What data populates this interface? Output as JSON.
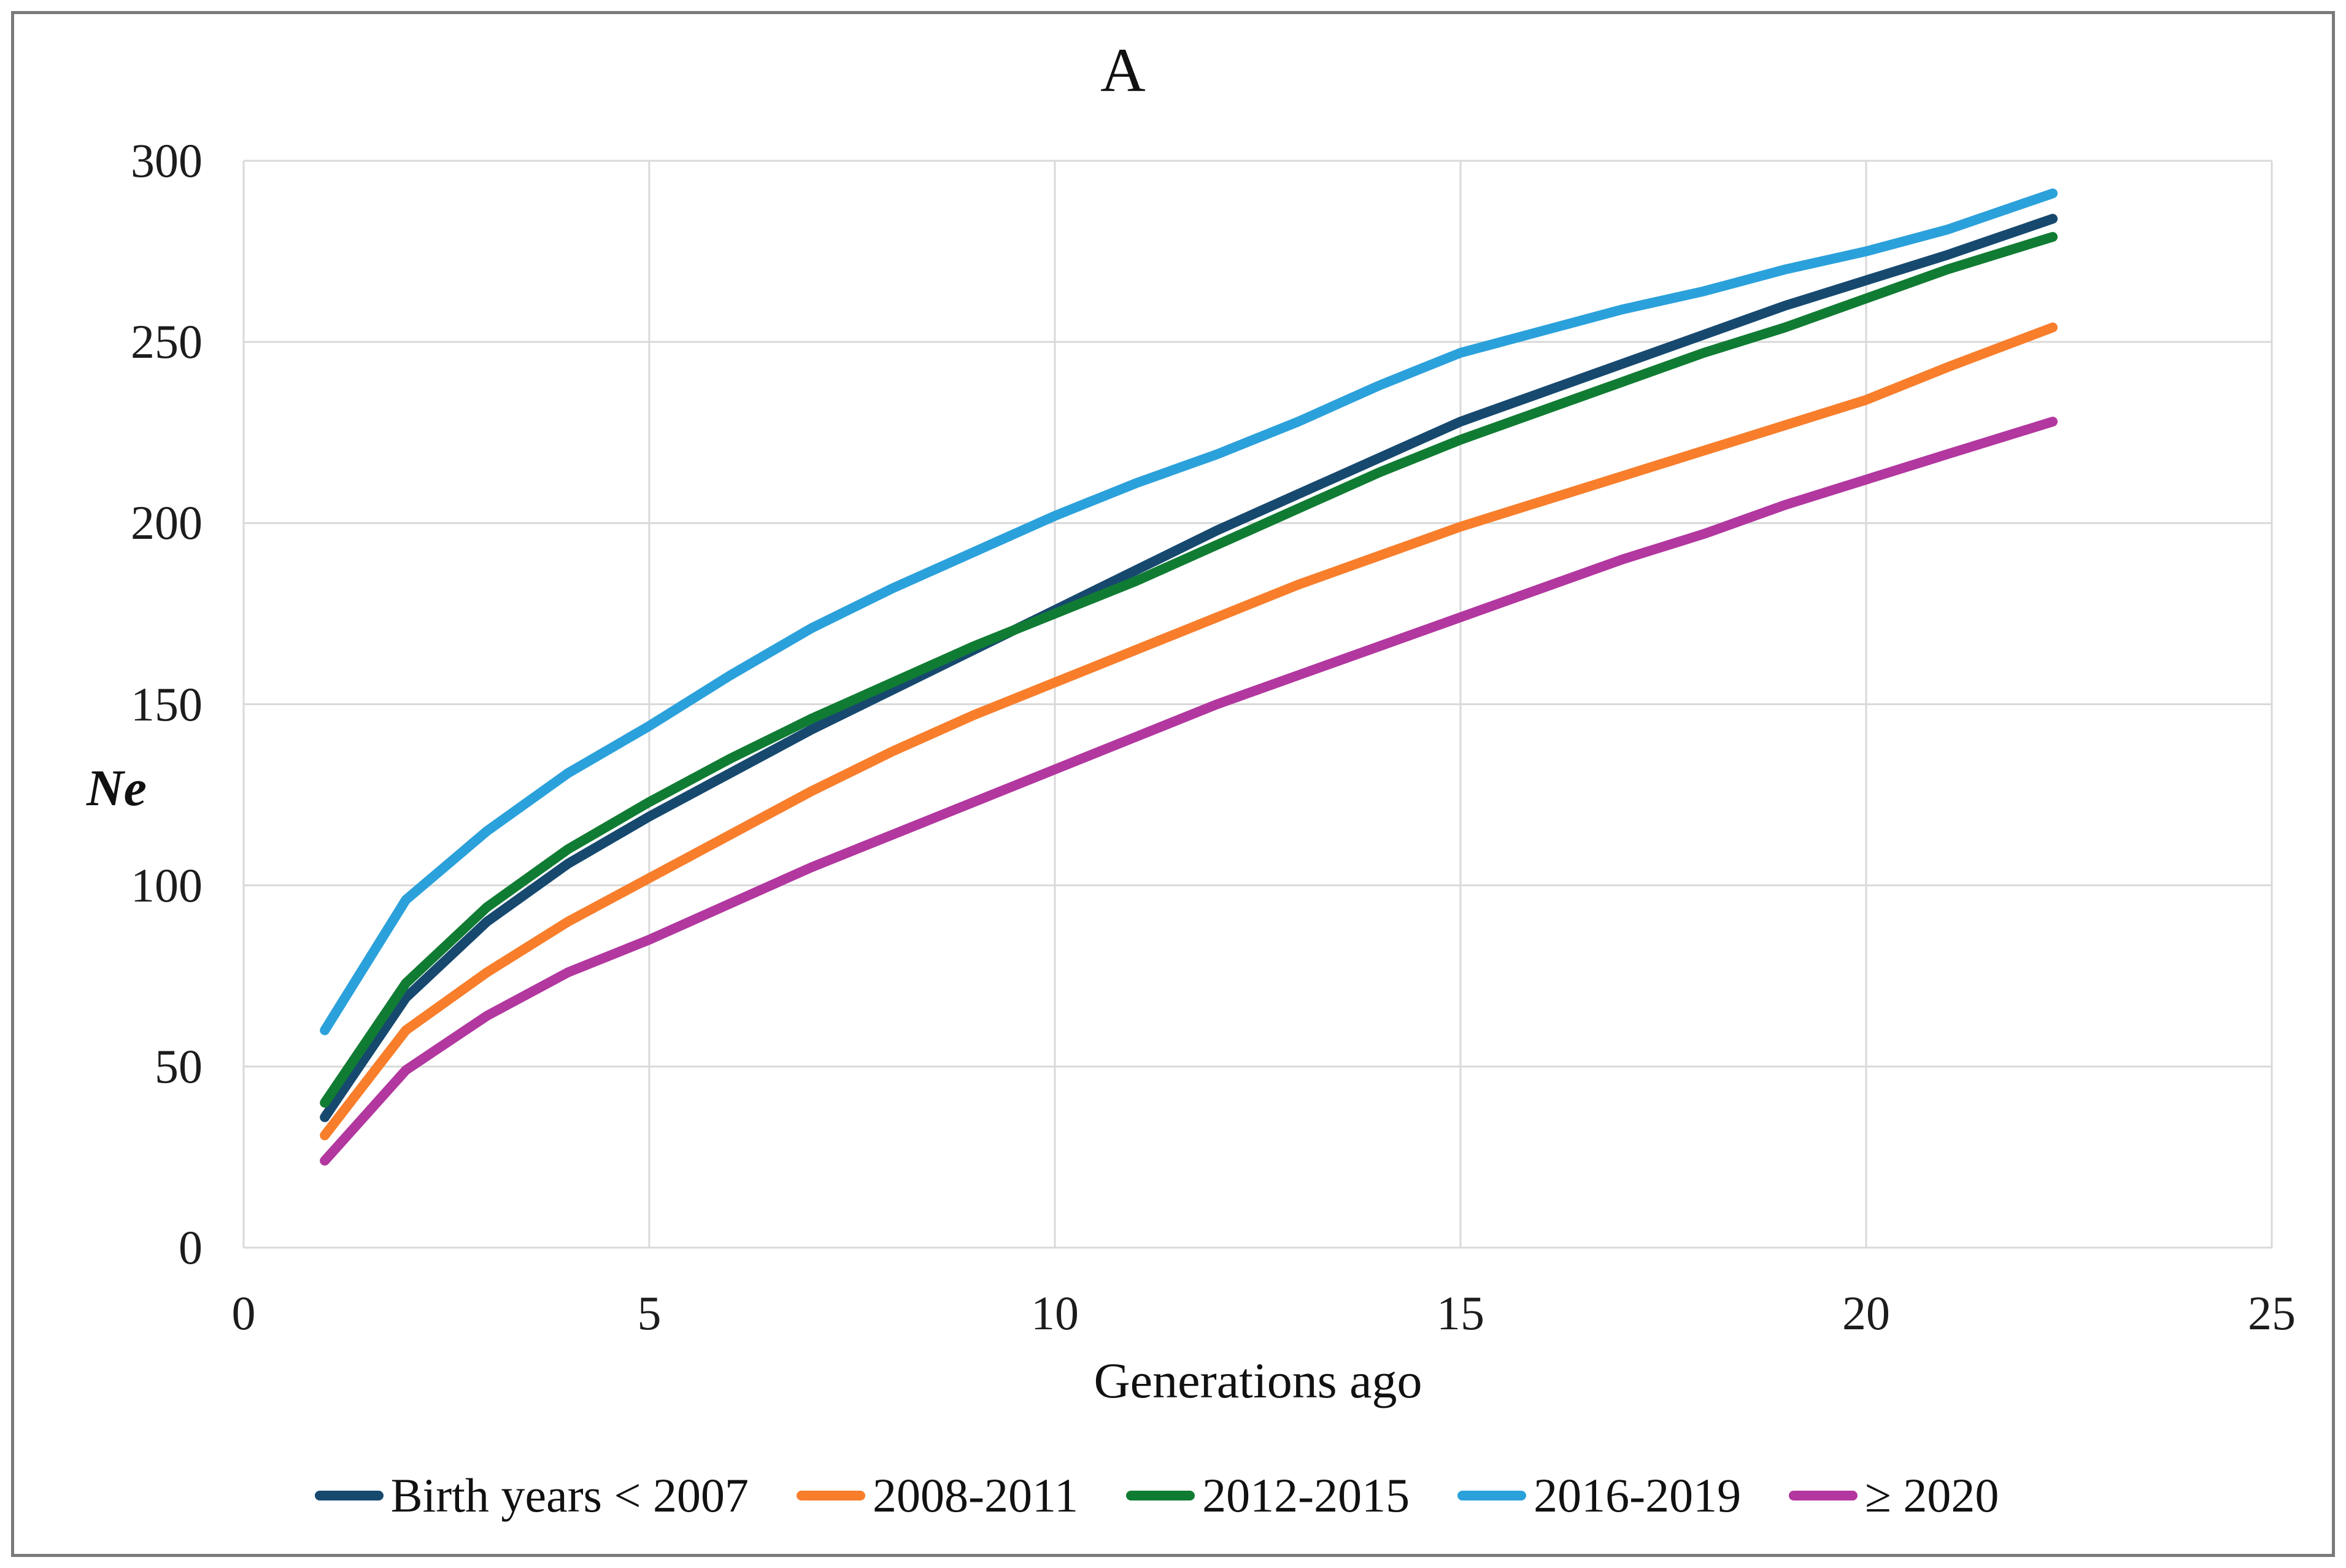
{
  "window": {
    "title": "A"
  },
  "colors": {
    "background": "#ffffff",
    "frame_border": "#7a7a7a",
    "gridline": "#d9d9d9",
    "text": "#1c1c1c"
  },
  "chart_data": {
    "type": "line",
    "title": "A",
    "xlabel": "Generations ago",
    "ylabel": "Ne",
    "xlim": [
      0,
      25
    ],
    "ylim": [
      0,
      300
    ],
    "x_ticks": [
      0,
      5,
      10,
      15,
      20,
      25
    ],
    "y_ticks": [
      0,
      50,
      100,
      150,
      200,
      250,
      300
    ],
    "grid": true,
    "legend_position": "bottom",
    "x": [
      1,
      2,
      3,
      4,
      5,
      6,
      7,
      8,
      9,
      10,
      11,
      12,
      13,
      14,
      15,
      16,
      17,
      18,
      19,
      20,
      21,
      22.3
    ],
    "series": [
      {
        "name": "Birth years < 2007",
        "color": "#17496F",
        "values": [
          36,
          69,
          90,
          106,
          119,
          131,
          143,
          154,
          165,
          176,
          187,
          198,
          208,
          218,
          228,
          236,
          244,
          252,
          260,
          267,
          274,
          284
        ]
      },
      {
        "name": "2008-2011",
        "color": "#F87E2B",
        "values": [
          31,
          60,
          76,
          90,
          102,
          114,
          126,
          137,
          147,
          156,
          165,
          174,
          183,
          191,
          199,
          206,
          213,
          220,
          227,
          234,
          243,
          254
        ]
      },
      {
        "name": "2012-2015",
        "color": "#107C33",
        "values": [
          40,
          73,
          94,
          110,
          123,
          135,
          146,
          156,
          166,
          175,
          184,
          194,
          204,
          214,
          223,
          231,
          239,
          247,
          254,
          262,
          270,
          279
        ]
      },
      {
        "name": "2016-2019",
        "color": "#2BA1DB",
        "values": [
          60,
          96,
          115,
          131,
          144,
          158,
          171,
          182,
          192,
          202,
          211,
          219,
          228,
          238,
          247,
          253,
          259,
          264,
          270,
          275,
          281,
          291
        ]
      },
      {
        "name": "≥ 2020",
        "color": "#B2379F",
        "values": [
          24,
          49,
          64,
          76,
          85,
          95,
          105,
          114,
          123,
          132,
          141,
          150,
          158,
          166,
          174,
          182,
          190,
          197,
          205,
          212,
          219,
          228
        ]
      }
    ]
  }
}
